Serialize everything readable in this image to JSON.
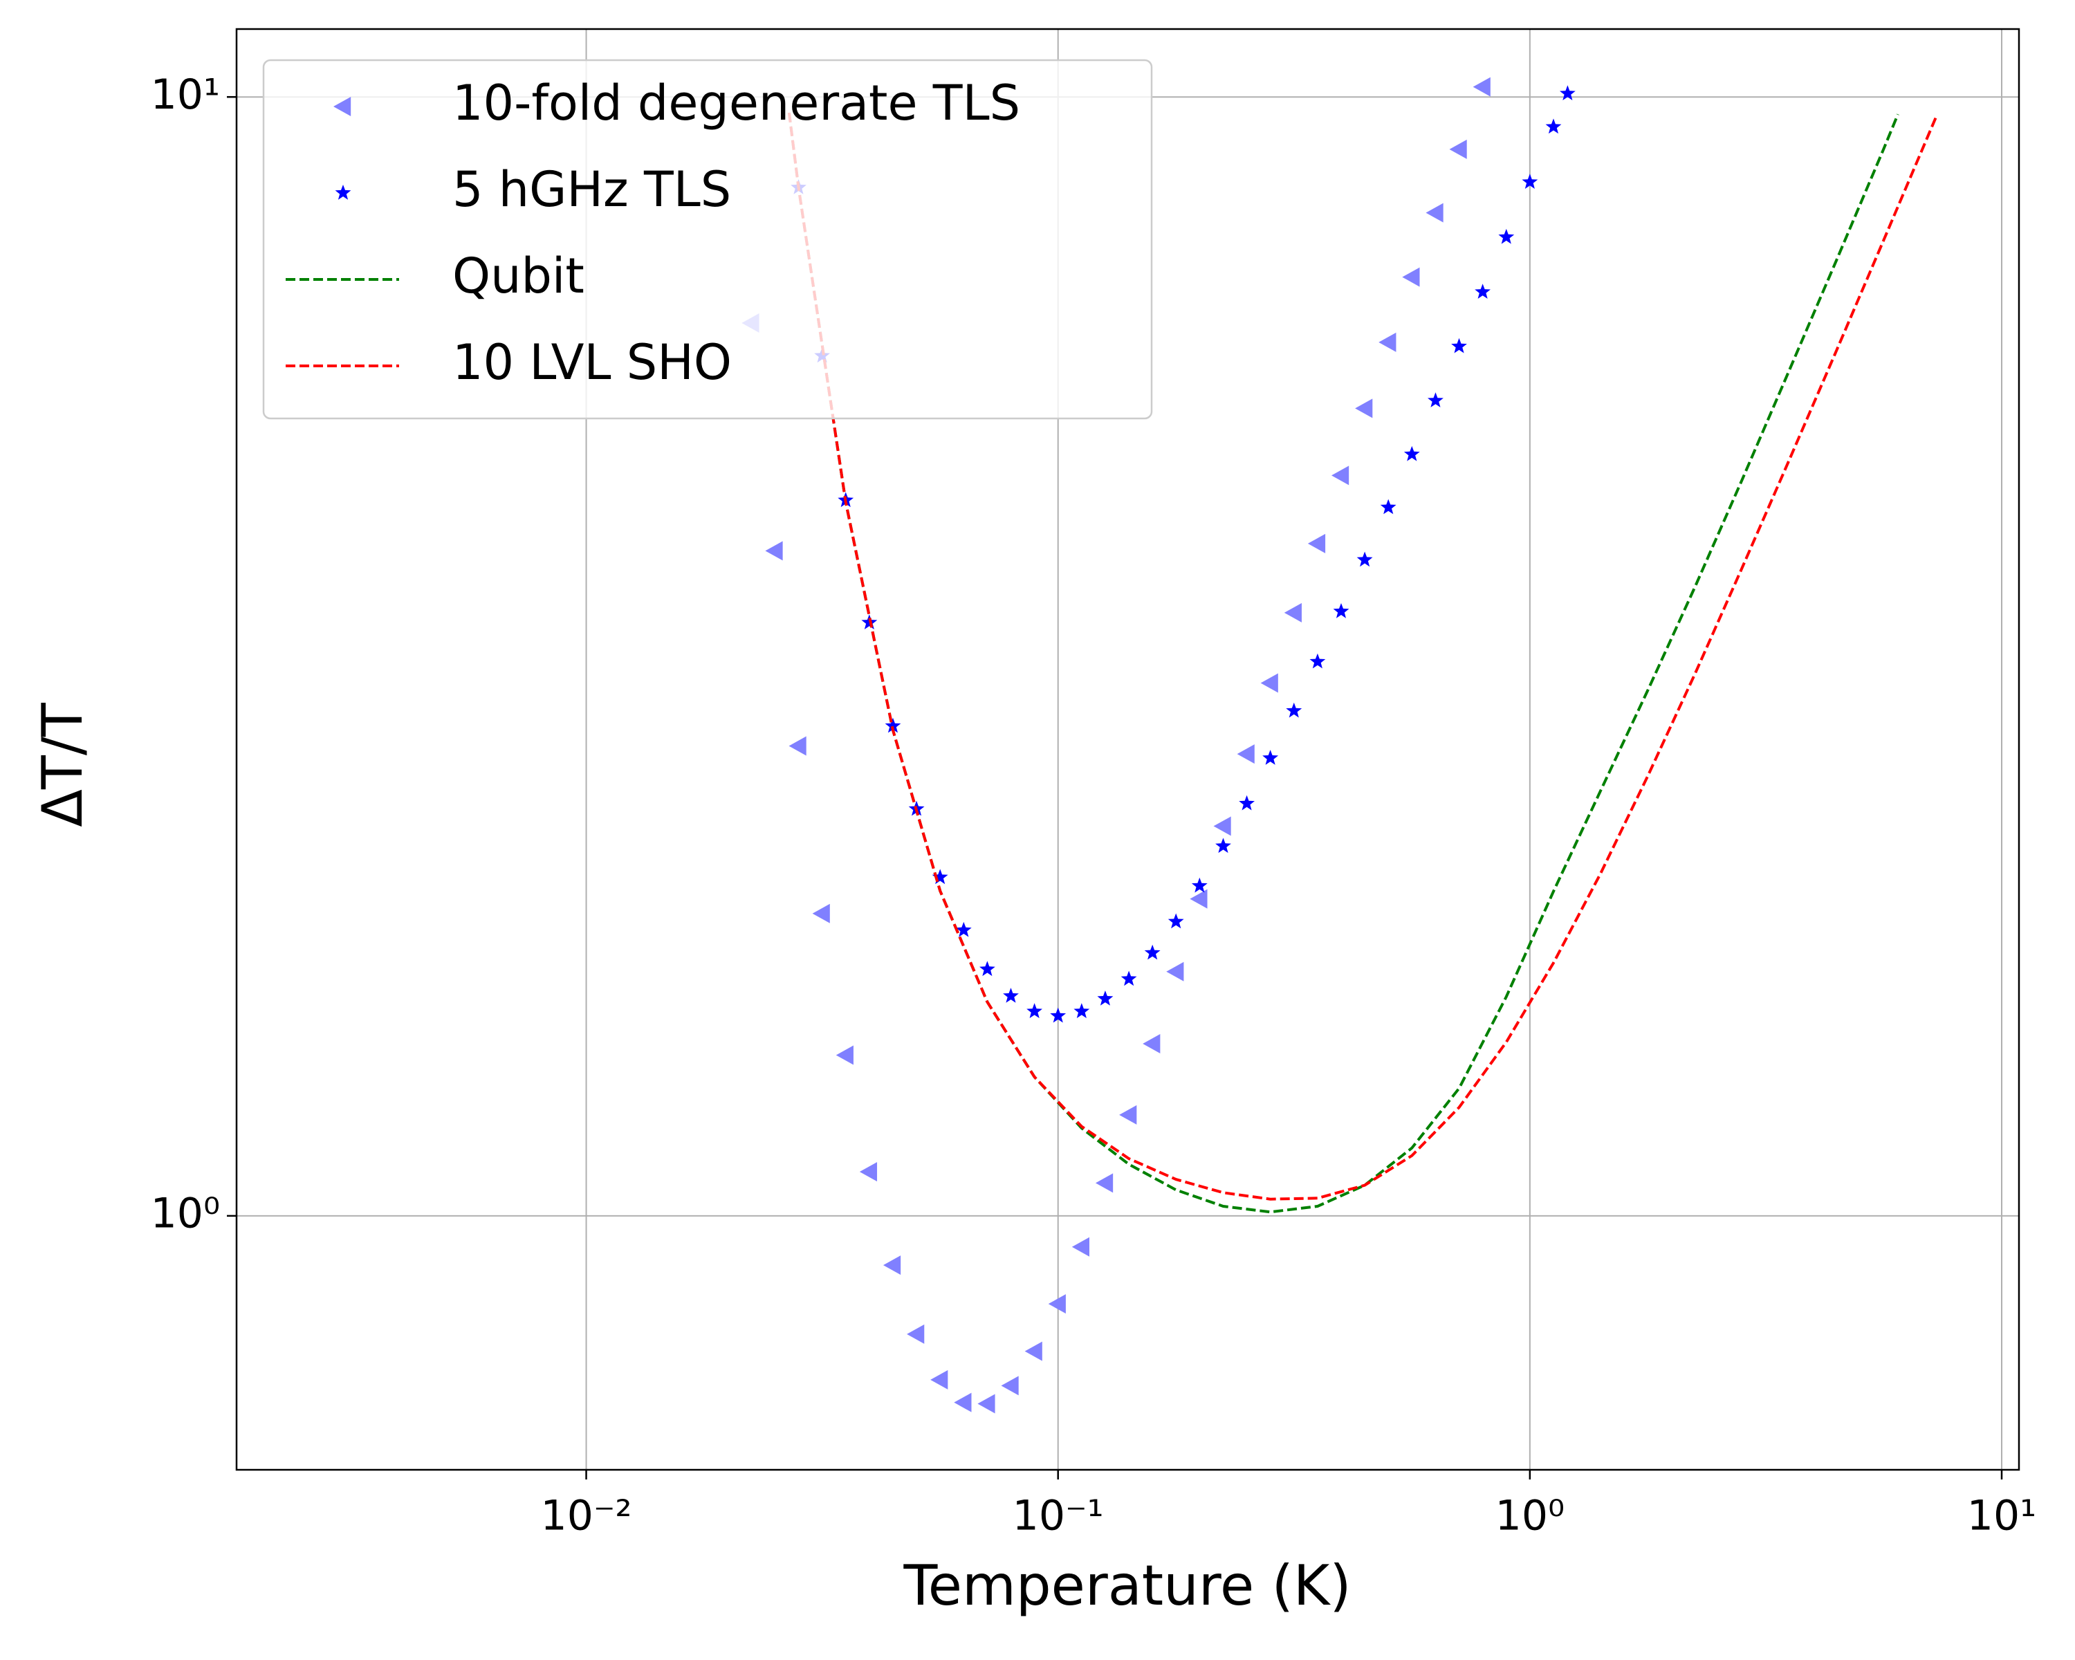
{
  "chart_data": {
    "type": "scatter",
    "x_label": "Temperature (K)",
    "y_label": "ΔT/T",
    "xscale": "log",
    "yscale": "log",
    "grid": true,
    "legend": "upper left",
    "xlim": [
      0.001815,
      10.88
    ],
    "ylim": [
      0.593,
      11.5
    ],
    "xticks": [
      {
        "value": 0.01,
        "label": "10⁻²"
      },
      {
        "value": 0.1,
        "label": "10⁻¹"
      },
      {
        "value": 1,
        "label": "10⁰"
      },
      {
        "value": 10,
        "label": "10¹"
      }
    ],
    "yticks": [
      {
        "value": 1,
        "label": "10⁰"
      },
      {
        "value": 10,
        "label": "10¹"
      }
    ],
    "series": [
      {
        "name": "10-fold degenerate TLS",
        "type": "scatter",
        "marker": "triangle-left",
        "color": "#8080ff",
        "x": [
          0.02239,
          0.02512,
          0.02818,
          0.03162,
          0.03548,
          0.03981,
          0.04467,
          0.05012,
          0.05623,
          0.0631,
          0.07079,
          0.07943,
          0.08913,
          0.1,
          0.1122,
          0.1259,
          0.1413,
          0.1585,
          0.1778,
          0.1995,
          0.2239,
          0.2512,
          0.2818,
          0.3162,
          0.3548,
          0.3981,
          0.4467,
          0.5012,
          0.5623,
          0.631,
          0.7079,
          0.7943
        ],
        "values": [
          6.28,
          3.93,
          2.63,
          1.863,
          1.392,
          1.095,
          0.9036,
          0.7839,
          0.7137,
          0.6811,
          0.6794,
          0.7051,
          0.7568,
          0.8343,
          0.9382,
          1.07,
          1.231,
          1.425,
          1.653,
          1.92,
          2.23,
          2.587,
          2.994,
          3.46,
          3.989,
          4.589,
          5.269,
          6.036,
          6.903,
          7.879,
          8.979,
          10.21
        ]
      },
      {
        "name": "5 hGHz TLS",
        "type": "scatter",
        "marker": "star",
        "color": "#0000ff",
        "x": [
          0.02818,
          0.03162,
          0.03548,
          0.03981,
          0.04467,
          0.05012,
          0.05623,
          0.0631,
          0.07079,
          0.07943,
          0.08913,
          0.1,
          0.1122,
          0.1259,
          0.1413,
          0.1585,
          0.1778,
          0.1995,
          0.2239,
          0.2512,
          0.2818,
          0.3162,
          0.3548,
          0.3981,
          0.4467,
          0.5012,
          0.5623,
          0.631,
          0.7079,
          0.7943,
          0.8913,
          1,
          1.122,
          1.202
        ],
        "values": [
          8.3,
          5.87,
          4.36,
          3.39,
          2.74,
          2.31,
          2.007,
          1.8,
          1.661,
          1.572,
          1.523,
          1.509,
          1.523,
          1.563,
          1.628,
          1.718,
          1.832,
          1.972,
          2.14,
          2.336,
          2.565,
          2.827,
          3.128,
          3.469,
          3.857,
          4.297,
          4.793,
          5.353,
          5.985,
          6.694,
          7.494,
          8.393,
          9.403,
          10.07
        ]
      },
      {
        "name": "Qubit",
        "type": "line",
        "color": "#008000",
        "x": [
          0.02692,
          0.02818,
          0.03548,
          0.04467,
          0.05623,
          0.07079,
          0.08913,
          0.1122,
          0.1413,
          0.1778,
          0.2239,
          0.2818,
          0.3548,
          0.4467,
          0.5623,
          0.7079,
          0.8913,
          1.122,
          1.413,
          1.778,
          2.239,
          2.818,
          3.548,
          4.467,
          5.623,
          6.026
        ],
        "values": [
          9.68,
          8.3,
          4.345,
          2.717,
          1.952,
          1.553,
          1.331,
          1.198,
          1.112,
          1.055,
          1.02,
          1.008,
          1.02,
          1.065,
          1.15,
          1.3,
          1.57,
          1.95,
          2.4,
          2.95,
          3.65,
          4.55,
          5.7,
          7.15,
          8.99,
          9.65
        ]
      },
      {
        "name": "10 LVL SHO",
        "type": "line",
        "color": "#ff0000",
        "x": [
          0.02692,
          0.02818,
          0.03548,
          0.04467,
          0.05623,
          0.07079,
          0.08913,
          0.1122,
          0.1413,
          0.1778,
          0.2239,
          0.2818,
          0.3548,
          0.4467,
          0.5623,
          0.7079,
          0.8913,
          1.122,
          1.413,
          1.778,
          2.239,
          2.818,
          3.548,
          4.467,
          5.623,
          7.079,
          7.244
        ],
        "values": [
          9.68,
          8.3,
          4.345,
          2.717,
          1.952,
          1.553,
          1.331,
          1.202,
          1.125,
          1.078,
          1.049,
          1.035,
          1.037,
          1.065,
          1.132,
          1.25,
          1.43,
          1.683,
          2.024,
          2.473,
          3.052,
          3.796,
          4.74,
          5.937,
          7.451,
          9.361,
          9.577
        ]
      }
    ]
  }
}
